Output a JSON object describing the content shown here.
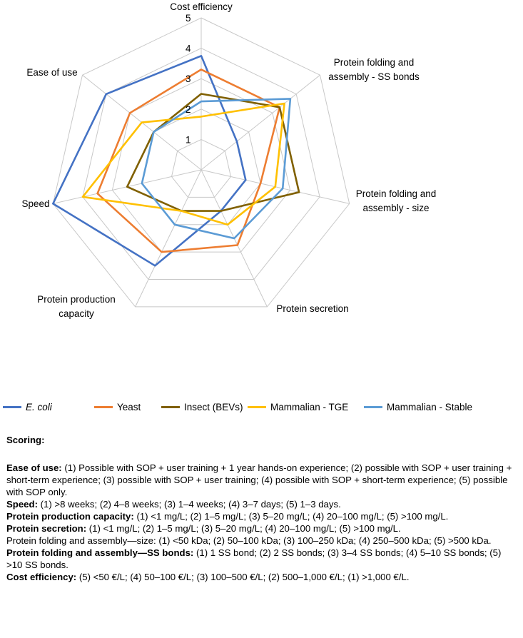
{
  "chart_data": {
    "type": "radar",
    "axes": [
      "Cost efficiency",
      "Protein folding and assembly - SS bonds",
      "Protein folding and assembly - size",
      "Protein secretion",
      "Protein production capacity",
      "Speed",
      "Ease of use"
    ],
    "axis_label_lines": [
      [
        "Cost efficiency"
      ],
      [
        "Protein folding and",
        "assembly - SS bonds"
      ],
      [
        "Protein folding and",
        "assembly - size"
      ],
      [
        "Protein secretion"
      ],
      [
        "Protein production",
        "capacity"
      ],
      [
        "Speed"
      ],
      [
        "Ease of use"
      ]
    ],
    "ticks": [
      "1",
      "2",
      "3",
      "4",
      "5"
    ],
    "rmin": 0,
    "rmax": 5,
    "gridlines": true,
    "legend_position": "bottom",
    "series": [
      {
        "name": "E. coli",
        "color": "#4472C4",
        "values": [
          3.75,
          1.5,
          1.5,
          1.5,
          3.5,
          5,
          4
        ]
      },
      {
        "name": "Yeast",
        "color": "#ED7D31",
        "values": [
          3.3,
          3.3,
          2.0,
          2.75,
          3,
          3.5,
          3.0
        ]
      },
      {
        "name": "Insect (BEVs)",
        "color": "#806000",
        "values": [
          2.5,
          3.3,
          3.3,
          1.5,
          1.5,
          2.5,
          2.0
        ]
      },
      {
        "name": "Mammalian - TGE",
        "color": "#FFC000",
        "values": [
          1.75,
          3.5,
          2.5,
          2.0,
          1.5,
          4,
          2.5
        ]
      },
      {
        "name": "Mammalian - Stable",
        "color": "#5B9BD5",
        "values": [
          2.25,
          3.75,
          2.75,
          2.5,
          2.0,
          2.0,
          2.0
        ]
      }
    ]
  },
  "legend": {
    "items": [
      {
        "name": "E. coli",
        "color": "#4472C4",
        "italic": true
      },
      {
        "name": "Yeast",
        "color": "#ED7D31",
        "italic": false
      },
      {
        "name": "Insect (BEVs)",
        "color": "#806000",
        "italic": false
      },
      {
        "name": "Mammalian - TGE",
        "color": "#FFC000",
        "italic": false
      },
      {
        "name": "Mammalian - Stable",
        "color": "#5B9BD5",
        "italic": false
      }
    ]
  },
  "scoring": {
    "heading": "Scoring:",
    "items": [
      {
        "label": "Ease of use:",
        "text": " (1) Possible with SOP + user training + 1 year hands-on experience; (2) possible with SOP + user training + short-term experience; (3) possible with SOP + user training; (4) possible with SOP + short-term experience; (5) possible with SOP only.",
        "bold": true
      },
      {
        "label": "Speed:",
        "text": " (1) >8 weeks; (2) 4–8 weeks; (3) 1–4 weeks; (4) 3–7 days; (5) 1–3 days.",
        "bold": true
      },
      {
        "label": "Protein production capacity:",
        "text": " (1) <1 mg/L; (2) 1–5 mg/L; (3) 5–20 mg/L; (4) 20–100 mg/L; (5) >100 mg/L.",
        "bold": true
      },
      {
        "label": "Protein secretion:",
        "text": " (1) <1 mg/L; (2) 1–5 mg/L; (3) 5–20 mg/L; (4) 20–100 mg/L; (5) >100 mg/L.",
        "bold": true
      },
      {
        "label": "Protein folding and assembly—size:",
        "text": " (1) <50 kDa; (2) 50–100 kDa; (3) 100–250 kDa; (4) 250–500 kDa; (5) >500 kDa.",
        "bold": false
      },
      {
        "label": "Protein folding and assembly—SS bonds:",
        "text": " (1) 1 SS bond; (2) 2 SS bonds; (3) 3–4 SS bonds; (4) 5–10 SS bonds; (5) >10 SS bonds.",
        "bold": true
      },
      {
        "label": "Cost efficiency:",
        "text": " (5) <50 €/L; (4) 50–100 €/L; (3) 100–500 €/L; (2) 500–1,000 €/L; (1) >1,000 €/L.",
        "bold": true
      }
    ]
  }
}
